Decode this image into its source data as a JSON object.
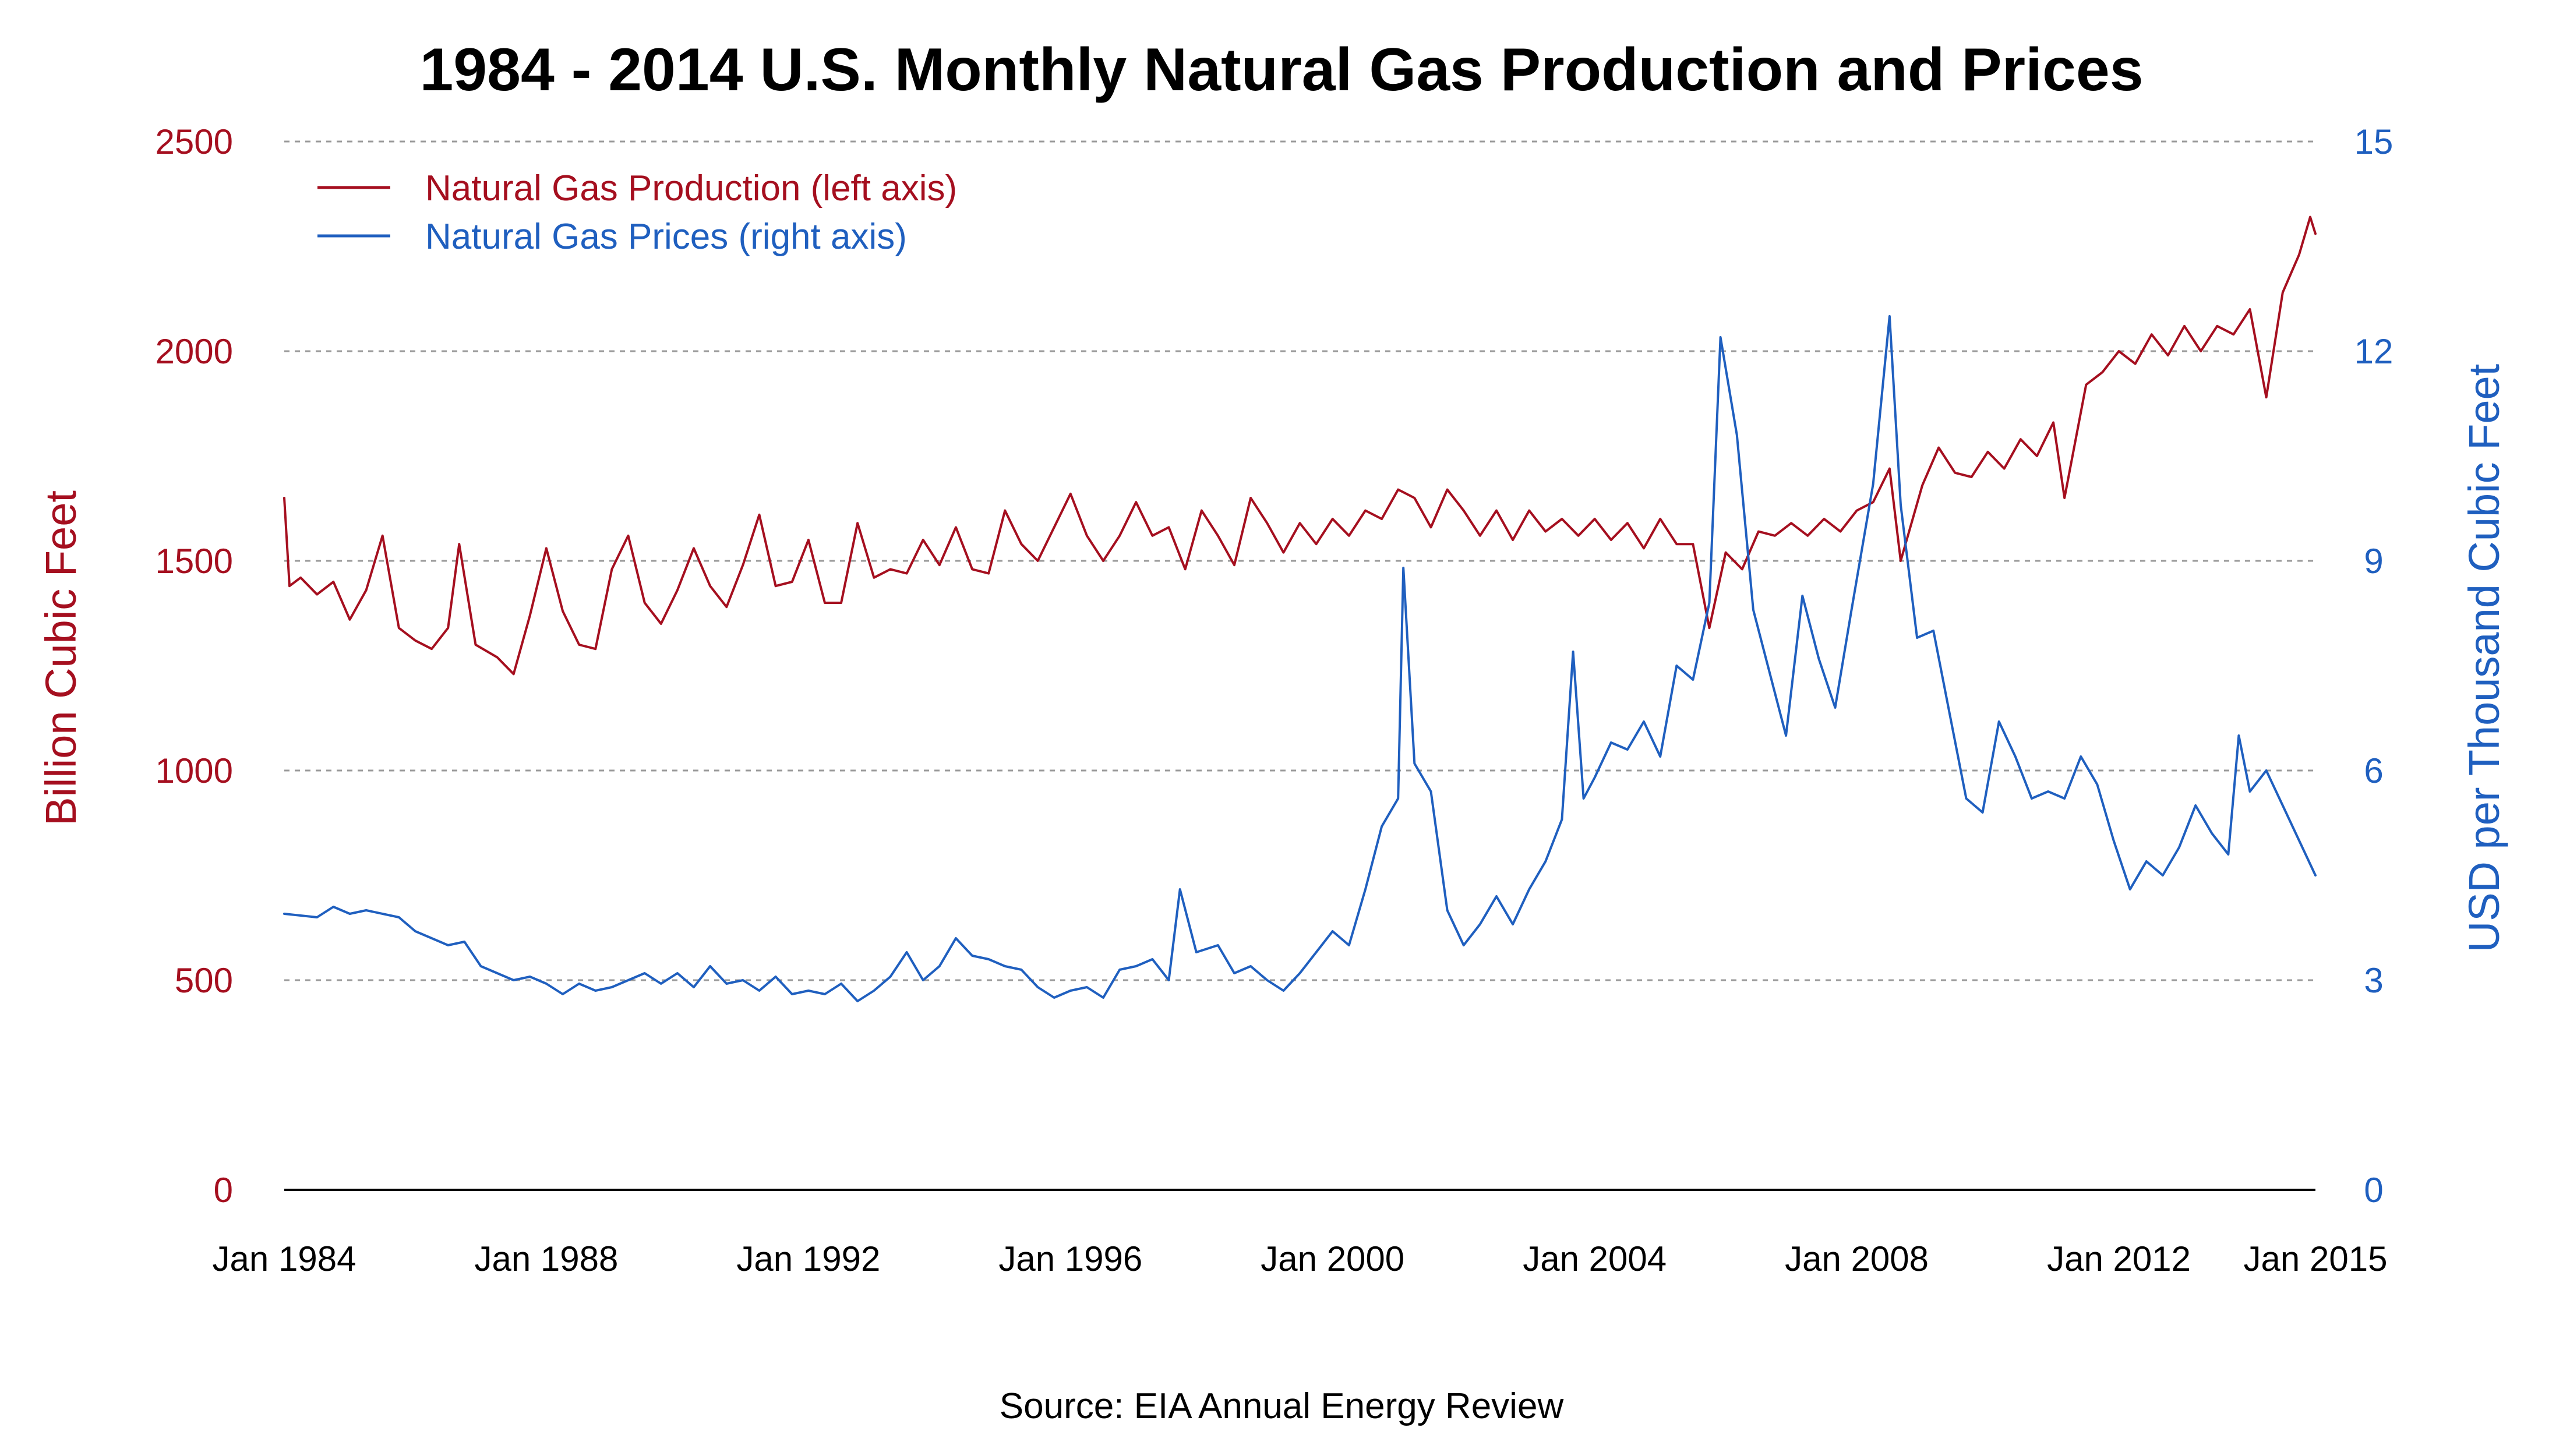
{
  "chart_data": {
    "type": "line",
    "title": "1984 - 2014 U.S. Monthly Natural Gas Production and Prices",
    "source": "Source: EIA Annual Energy Review",
    "ylabel": "Billion Cubic Feet",
    "y2label": "USD per Thousand Cubic Feet",
    "ylim": [
      0,
      2500
    ],
    "y2lim": [
      0,
      15
    ],
    "yticks": [
      "0",
      "500",
      "1000",
      "1500",
      "2000",
      "2500"
    ],
    "y2ticks": [
      "0",
      "3",
      "6",
      "9",
      "12",
      "15"
    ],
    "xlim": [
      1984.0,
      2015.0
    ],
    "xticks": [
      {
        "value": 1984,
        "label": "Jan 1984"
      },
      {
        "value": 1988,
        "label": "Jan 1988"
      },
      {
        "value": 1992,
        "label": "Jan 1992"
      },
      {
        "value": 1996,
        "label": "Jan 1996"
      },
      {
        "value": 2000,
        "label": "Jan 2000"
      },
      {
        "value": 2004,
        "label": "Jan 2004"
      },
      {
        "value": 2008,
        "label": "Jan 2008"
      },
      {
        "value": 2012,
        "label": "Jan 2012"
      },
      {
        "value": 2015,
        "label": "Jan 2015"
      }
    ],
    "grid": true,
    "legend_position": "top-left",
    "colors": {
      "production": "#a50f1f",
      "prices": "#1f5fbf"
    },
    "series": [
      {
        "name": "Natural Gas Production (left axis)",
        "axis": "left",
        "points": [
          [
            1984.0,
            1650
          ],
          [
            1984.08,
            1440
          ],
          [
            1984.25,
            1460
          ],
          [
            1984.5,
            1420
          ],
          [
            1984.75,
            1450
          ],
          [
            1985.0,
            1360
          ],
          [
            1985.25,
            1430
          ],
          [
            1985.5,
            1560
          ],
          [
            1985.75,
            1340
          ],
          [
            1986.0,
            1310
          ],
          [
            1986.25,
            1290
          ],
          [
            1986.5,
            1340
          ],
          [
            1986.67,
            1540
          ],
          [
            1986.92,
            1300
          ],
          [
            1987.25,
            1270
          ],
          [
            1987.5,
            1230
          ],
          [
            1987.75,
            1370
          ],
          [
            1988.0,
            1530
          ],
          [
            1988.25,
            1380
          ],
          [
            1988.5,
            1300
          ],
          [
            1988.75,
            1290
          ],
          [
            1989.0,
            1480
          ],
          [
            1989.25,
            1560
          ],
          [
            1989.5,
            1400
          ],
          [
            1989.75,
            1350
          ],
          [
            1990.0,
            1430
          ],
          [
            1990.25,
            1530
          ],
          [
            1990.5,
            1440
          ],
          [
            1990.75,
            1390
          ],
          [
            1991.0,
            1490
          ],
          [
            1991.25,
            1610
          ],
          [
            1991.5,
            1440
          ],
          [
            1991.75,
            1450
          ],
          [
            1992.0,
            1550
          ],
          [
            1992.25,
            1400
          ],
          [
            1992.5,
            1400
          ],
          [
            1992.75,
            1590
          ],
          [
            1993.0,
            1460
          ],
          [
            1993.25,
            1480
          ],
          [
            1993.5,
            1470
          ],
          [
            1993.75,
            1550
          ],
          [
            1994.0,
            1490
          ],
          [
            1994.25,
            1580
          ],
          [
            1994.5,
            1480
          ],
          [
            1994.75,
            1470
          ],
          [
            1995.0,
            1620
          ],
          [
            1995.25,
            1540
          ],
          [
            1995.5,
            1500
          ],
          [
            1995.75,
            1580
          ],
          [
            1996.0,
            1660
          ],
          [
            1996.25,
            1560
          ],
          [
            1996.5,
            1500
          ],
          [
            1996.75,
            1560
          ],
          [
            1997.0,
            1640
          ],
          [
            1997.25,
            1560
          ],
          [
            1997.5,
            1580
          ],
          [
            1997.75,
            1480
          ],
          [
            1998.0,
            1620
          ],
          [
            1998.25,
            1560
          ],
          [
            1998.5,
            1490
          ],
          [
            1998.75,
            1650
          ],
          [
            1999.0,
            1590
          ],
          [
            1999.25,
            1520
          ],
          [
            1999.5,
            1590
          ],
          [
            1999.75,
            1540
          ],
          [
            2000.0,
            1600
          ],
          [
            2000.25,
            1560
          ],
          [
            2000.5,
            1620
          ],
          [
            2000.75,
            1600
          ],
          [
            2001.0,
            1670
          ],
          [
            2001.25,
            1650
          ],
          [
            2001.5,
            1580
          ],
          [
            2001.75,
            1670
          ],
          [
            2002.0,
            1620
          ],
          [
            2002.25,
            1560
          ],
          [
            2002.5,
            1620
          ],
          [
            2002.75,
            1550
          ],
          [
            2003.0,
            1620
          ],
          [
            2003.25,
            1570
          ],
          [
            2003.5,
            1600
          ],
          [
            2003.75,
            1560
          ],
          [
            2004.0,
            1600
          ],
          [
            2004.25,
            1550
          ],
          [
            2004.5,
            1590
          ],
          [
            2004.75,
            1530
          ],
          [
            2005.0,
            1600
          ],
          [
            2005.25,
            1540
          ],
          [
            2005.5,
            1540
          ],
          [
            2005.75,
            1340
          ],
          [
            2006.0,
            1520
          ],
          [
            2006.25,
            1480
          ],
          [
            2006.5,
            1570
          ],
          [
            2006.75,
            1560
          ],
          [
            2007.0,
            1590
          ],
          [
            2007.25,
            1560
          ],
          [
            2007.5,
            1600
          ],
          [
            2007.75,
            1570
          ],
          [
            2008.0,
            1620
          ],
          [
            2008.25,
            1640
          ],
          [
            2008.5,
            1720
          ],
          [
            2008.67,
            1500
          ],
          [
            2009.0,
            1680
          ],
          [
            2009.25,
            1770
          ],
          [
            2009.5,
            1710
          ],
          [
            2009.75,
            1700
          ],
          [
            2010.0,
            1760
          ],
          [
            2010.25,
            1720
          ],
          [
            2010.5,
            1790
          ],
          [
            2010.75,
            1750
          ],
          [
            2011.0,
            1830
          ],
          [
            2011.17,
            1650
          ],
          [
            2011.5,
            1920
          ],
          [
            2011.75,
            1950
          ],
          [
            2012.0,
            2000
          ],
          [
            2012.25,
            1970
          ],
          [
            2012.5,
            2040
          ],
          [
            2012.75,
            1990
          ],
          [
            2013.0,
            2060
          ],
          [
            2013.25,
            2000
          ],
          [
            2013.5,
            2060
          ],
          [
            2013.75,
            2040
          ],
          [
            2014.0,
            2100
          ],
          [
            2014.25,
            1890
          ],
          [
            2014.5,
            2140
          ],
          [
            2014.75,
            2230
          ],
          [
            2014.92,
            2320
          ],
          [
            2015.0,
            2280
          ]
        ]
      },
      {
        "name": "Natural Gas Prices (right axis)",
        "axis": "right",
        "points": [
          [
            1984.0,
            3.95
          ],
          [
            1984.5,
            3.9
          ],
          [
            1984.75,
            4.05
          ],
          [
            1985.0,
            3.95
          ],
          [
            1985.25,
            4.0
          ],
          [
            1985.75,
            3.9
          ],
          [
            1986.0,
            3.7
          ],
          [
            1986.5,
            3.5
          ],
          [
            1986.75,
            3.55
          ],
          [
            1987.0,
            3.2
          ],
          [
            1987.5,
            3.0
          ],
          [
            1987.75,
            3.05
          ],
          [
            1988.0,
            2.95
          ],
          [
            1988.25,
            2.8
          ],
          [
            1988.5,
            2.95
          ],
          [
            1988.75,
            2.85
          ],
          [
            1989.0,
            2.9
          ],
          [
            1989.5,
            3.1
          ],
          [
            1989.75,
            2.95
          ],
          [
            1990.0,
            3.1
          ],
          [
            1990.25,
            2.9
          ],
          [
            1990.5,
            3.2
          ],
          [
            1990.75,
            2.95
          ],
          [
            1991.0,
            3.0
          ],
          [
            1991.25,
            2.85
          ],
          [
            1991.5,
            3.05
          ],
          [
            1991.75,
            2.8
          ],
          [
            1992.0,
            2.85
          ],
          [
            1992.25,
            2.8
          ],
          [
            1992.5,
            2.95
          ],
          [
            1992.75,
            2.7
          ],
          [
            1993.0,
            2.85
          ],
          [
            1993.25,
            3.05
          ],
          [
            1993.5,
            3.4
          ],
          [
            1993.75,
            3.0
          ],
          [
            1994.0,
            3.2
          ],
          [
            1994.25,
            3.6
          ],
          [
            1994.5,
            3.35
          ],
          [
            1994.75,
            3.3
          ],
          [
            1995.0,
            3.2
          ],
          [
            1995.25,
            3.15
          ],
          [
            1995.5,
            2.9
          ],
          [
            1995.75,
            2.75
          ],
          [
            1996.0,
            2.85
          ],
          [
            1996.25,
            2.9
          ],
          [
            1996.5,
            2.75
          ],
          [
            1996.75,
            3.15
          ],
          [
            1997.0,
            3.2
          ],
          [
            1997.25,
            3.3
          ],
          [
            1997.5,
            3.0
          ],
          [
            1997.67,
            4.3
          ],
          [
            1997.92,
            3.4
          ],
          [
            1998.25,
            3.5
          ],
          [
            1998.5,
            3.1
          ],
          [
            1998.75,
            3.2
          ],
          [
            1999.0,
            3.0
          ],
          [
            1999.25,
            2.85
          ],
          [
            1999.5,
            3.1
          ],
          [
            1999.75,
            3.4
          ],
          [
            2000.0,
            3.7
          ],
          [
            2000.25,
            3.5
          ],
          [
            2000.5,
            4.3
          ],
          [
            2000.75,
            5.2
          ],
          [
            2001.0,
            5.6
          ],
          [
            2001.08,
            8.9
          ],
          [
            2001.25,
            6.1
          ],
          [
            2001.5,
            5.7
          ],
          [
            2001.75,
            4.0
          ],
          [
            2002.0,
            3.5
          ],
          [
            2002.25,
            3.8
          ],
          [
            2002.5,
            4.2
          ],
          [
            2002.75,
            3.8
          ],
          [
            2003.0,
            4.3
          ],
          [
            2003.25,
            4.7
          ],
          [
            2003.5,
            5.3
          ],
          [
            2003.67,
            7.7
          ],
          [
            2003.83,
            5.6
          ],
          [
            2004.0,
            5.9
          ],
          [
            2004.25,
            6.4
          ],
          [
            2004.5,
            6.3
          ],
          [
            2004.75,
            6.7
          ],
          [
            2005.0,
            6.2
          ],
          [
            2005.25,
            7.5
          ],
          [
            2005.5,
            7.3
          ],
          [
            2005.75,
            8.4
          ],
          [
            2005.92,
            12.2
          ],
          [
            2006.17,
            10.8
          ],
          [
            2006.42,
            8.3
          ],
          [
            2006.67,
            7.4
          ],
          [
            2006.92,
            6.5
          ],
          [
            2007.17,
            8.5
          ],
          [
            2007.42,
            7.6
          ],
          [
            2007.67,
            6.9
          ],
          [
            2007.92,
            8.3
          ],
          [
            2008.25,
            10.1
          ],
          [
            2008.5,
            12.5
          ],
          [
            2008.67,
            9.8
          ],
          [
            2008.92,
            7.9
          ],
          [
            2009.17,
            8.0
          ],
          [
            2009.42,
            6.8
          ],
          [
            2009.67,
            5.6
          ],
          [
            2009.92,
            5.4
          ],
          [
            2010.17,
            6.7
          ],
          [
            2010.42,
            6.2
          ],
          [
            2010.67,
            5.6
          ],
          [
            2010.92,
            5.7
          ],
          [
            2011.17,
            5.6
          ],
          [
            2011.42,
            6.2
          ],
          [
            2011.67,
            5.8
          ],
          [
            2011.92,
            5.0
          ],
          [
            2012.17,
            4.3
          ],
          [
            2012.42,
            4.7
          ],
          [
            2012.67,
            4.5
          ],
          [
            2012.92,
            4.9
          ],
          [
            2013.17,
            5.5
          ],
          [
            2013.42,
            5.1
          ],
          [
            2013.67,
            4.8
          ],
          [
            2013.83,
            6.5
          ],
          [
            2014.0,
            5.7
          ],
          [
            2014.25,
            6.0
          ],
          [
            2014.5,
            5.5
          ],
          [
            2014.75,
            5.0
          ],
          [
            2015.0,
            4.5
          ]
        ]
      }
    ]
  }
}
